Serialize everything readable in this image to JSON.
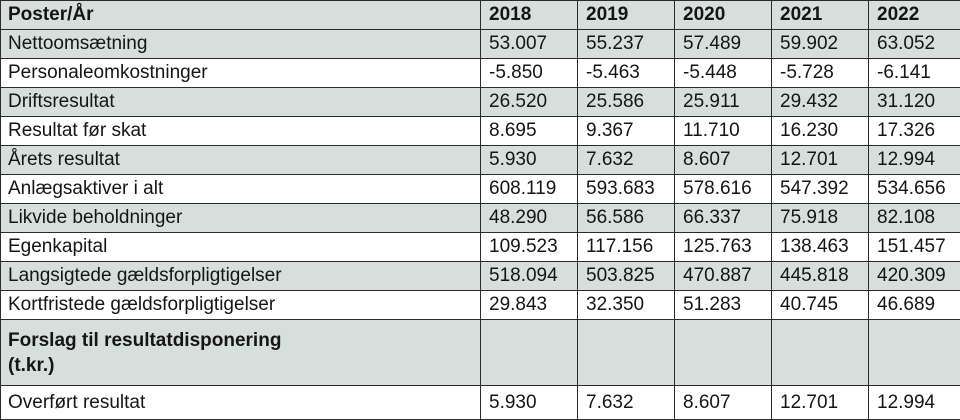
{
  "table": {
    "header": {
      "label": "Poster/År",
      "years": [
        "2018",
        "2019",
        "2020",
        "2021",
        "2022"
      ]
    },
    "rows": [
      {
        "label": "Nettoomsætning",
        "values": [
          "53.007",
          "55.237",
          "57.489",
          "59.902",
          "63.052"
        ]
      },
      {
        "label": "Personaleomkostninger",
        "values": [
          "-5.850",
          "-5.463",
          "-5.448",
          "-5.728",
          "-6.141"
        ]
      },
      {
        "label": "Driftsresultat",
        "values": [
          "26.520",
          "25.586",
          "25.911",
          "29.432",
          "31.120"
        ]
      },
      {
        "label": "Resultat før skat",
        "values": [
          "8.695",
          "9.367",
          "11.710",
          "16.230",
          "17.326"
        ]
      },
      {
        "label": "Årets resultat",
        "values": [
          "5.930",
          "7.632",
          "8.607",
          "12.701",
          "12.994"
        ]
      },
      {
        "label": "Anlægsaktiver i alt",
        "values": [
          "608.119",
          "593.683",
          "578.616",
          "547.392",
          "534.656"
        ]
      },
      {
        "label": "Likvide beholdninger",
        "values": [
          "48.290",
          "56.586",
          "66.337",
          "75.918",
          "82.108"
        ]
      },
      {
        "label": "Egenkapital",
        "values": [
          "109.523",
          "117.156",
          "125.763",
          "138.463",
          "151.457"
        ]
      },
      {
        "label": "Langsigtede gældsforpligtigelser",
        "values": [
          "518.094",
          "503.825",
          "470.887",
          "445.818",
          "420.309"
        ]
      },
      {
        "label": "Kortfristede gældsforpligtigelser",
        "values": [
          "29.843",
          "32.350",
          "51.283",
          "40.745",
          "46.689"
        ]
      }
    ],
    "section": {
      "title": "Forslag til resultatdisponering",
      "unit": "(t.kr.)"
    },
    "final_row": {
      "label": "Overført resultat",
      "values": [
        "5.930",
        "7.632",
        "8.607",
        "12.701",
        "12.994"
      ]
    }
  },
  "colors": {
    "shaded_row": "#d6dfdc",
    "border": "#2b2b2b",
    "text": "#151515"
  }
}
